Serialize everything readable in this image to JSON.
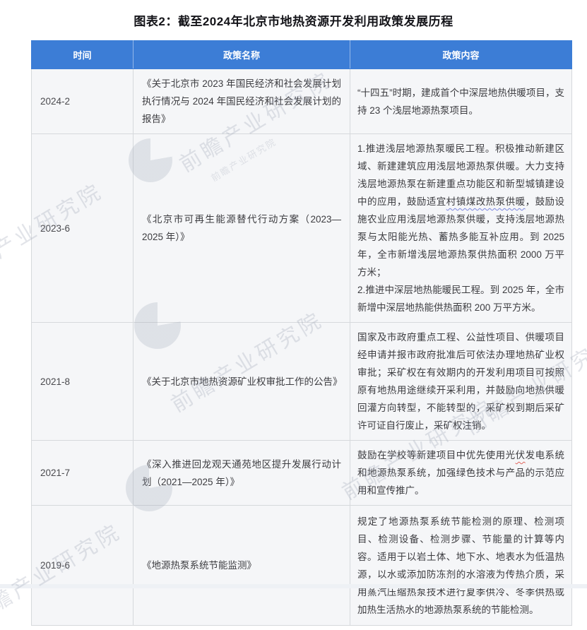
{
  "title": "图表2：截至2024年北京市地热资源开发利用政策发展历程",
  "colors": {
    "header_bg": "#3c7dd6",
    "cell_bg": "#f5f6f8"
  },
  "watermark": {
    "brand": "前瞻产业研究院",
    "brand_small": "前瞻产业研究院"
  },
  "table": {
    "columns": [
      "时间",
      "政策名称",
      "政策内容"
    ],
    "rows": [
      {
        "time": "2024-2",
        "name": "《关于北京市 2023 年国民经济和社会发展计划执行情况与 2024 年国民经济和社会发展计划的报告》",
        "content": [
          [
            {
              "t": "“十四五”时期，建成首个中深层地热供暖项目，支持 23 个浅层地源热泵项目。"
            }
          ]
        ]
      },
      {
        "time": "2023-6",
        "name": "《北京市可再生能源替代行动方案（2023—2025 年）》",
        "content": [
          [
            {
              "t": "1.推进浅层地源热泵暖民工程。积极推动新建区域、新建建筑应用浅层地源热泵供暖。大力支持浅层地源热泵在新建重点功能区和新型城镇建设中的应用，鼓励适宜"
            },
            {
              "t": "村镇煤改热泵供暖",
              "u": "blue"
            },
            {
              "t": "，鼓励设施农业应用浅层地源热泵供暖，支持浅层地源热泵与太阳能光热、蓄热多能互补应用。到 2025 年，全市新增浅层地源热泵供热面积 2000 万平方米；"
            }
          ],
          [
            {
              "t": "2.推进中深层地热能暖民工程。到 2025 年，全市新增中深层地热能供热面积 200 万平方米。"
            }
          ]
        ]
      },
      {
        "time": "2021-8",
        "name": "《关于北京市地热资源矿业权审批工作的公告》",
        "content": [
          [
            {
              "t": "国家及市政府重点工程、公益性项目、供暖项目经申请并报市政府批准后可依法办理地热矿业权审批；采矿权在有效期内的开发利用项目可按照原有地热用途继续开采利用，并鼓励向地热供暖回灌方向转型，不能转型的，采矿权到期后采矿许可证自行废止，采矿权注销。"
            }
          ]
        ]
      },
      {
        "time": "2021-7",
        "name": "《深入推进回龙观天通苑地区提升发展行动计划（2021—2025 年）》",
        "content": [
          [
            {
              "t": "鼓励在学校等新建项目中优先使用光"
            },
            {
              "t": "伏",
              "u": "red"
            },
            {
              "t": "发电系统和地源热泵系统，加强绿色技术与产品的示范应用和宣传推广。"
            }
          ]
        ]
      },
      {
        "time": "2019-6",
        "name": "《地源热泵系统节能监测》",
        "content": [
          [
            {
              "t": "规定了地源热泵系统节能检测的原理、检测项目、检测设备、检测步骤、节能量的计算等内容。适用于以岩土体、地下水、地表水为低温热源，以水或添加防冻剂的水溶液为传热介质，采用蒸汽压缩热泵技术进行夏季供冷、冬季供热或加热生活热水的地源热泵系统的节能检测。"
            }
          ]
        ]
      }
    ]
  }
}
